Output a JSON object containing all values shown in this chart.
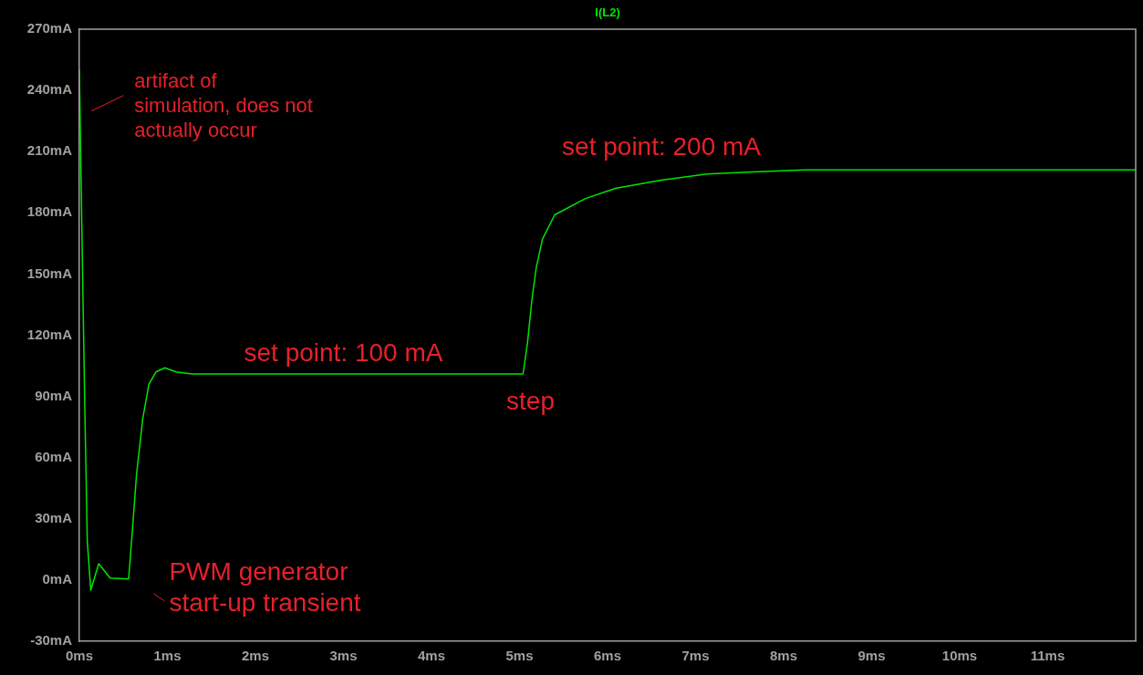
{
  "chart_data": {
    "type": "line",
    "title": "I(L2)",
    "xlim": [
      0,
      12
    ],
    "ylim": [
      -30,
      270
    ],
    "xticks": [
      {
        "value": 0,
        "label": "0ms"
      },
      {
        "value": 1,
        "label": "1ms"
      },
      {
        "value": 2,
        "label": "2ms"
      },
      {
        "value": 3,
        "label": "3ms"
      },
      {
        "value": 4,
        "label": "4ms"
      },
      {
        "value": 5,
        "label": "5ms"
      },
      {
        "value": 6,
        "label": "6ms"
      },
      {
        "value": 7,
        "label": "7ms"
      },
      {
        "value": 8,
        "label": "8ms"
      },
      {
        "value": 9,
        "label": "9ms"
      },
      {
        "value": 10,
        "label": "10ms"
      },
      {
        "value": 11,
        "label": "11ms"
      }
    ],
    "yticks": [
      {
        "value": -30,
        "label": "-30mA"
      },
      {
        "value": 0,
        "label": "0mA"
      },
      {
        "value": 30,
        "label": "30mA"
      },
      {
        "value": 60,
        "label": "60mA"
      },
      {
        "value": 90,
        "label": "90mA"
      },
      {
        "value": 120,
        "label": "120mA"
      },
      {
        "value": 150,
        "label": "150mA"
      },
      {
        "value": 180,
        "label": "180mA"
      },
      {
        "value": 210,
        "label": "210mA"
      },
      {
        "value": 240,
        "label": "240mA"
      },
      {
        "value": 270,
        "label": "270mA"
      }
    ],
    "marker": "none",
    "line_style": "solid",
    "series": [
      {
        "color": "#00e600",
        "x": [
          0,
          0.04,
          0.06,
          0.09,
          0.13,
          0.22,
          0.35,
          0.56,
          0.6,
          0.65,
          0.72,
          0.79,
          0.87,
          0.97,
          1.1,
          1.28,
          5.0,
          5.04,
          5.09,
          5.14,
          5.19,
          5.26,
          5.4,
          5.75,
          6.09,
          6.61,
          7.13,
          7.65,
          8.24,
          12
        ],
        "values": [
          250,
          141,
          89,
          19,
          -5,
          8,
          1,
          0.5,
          23,
          52,
          79,
          96,
          102,
          104,
          102,
          101,
          101,
          101,
          116,
          137,
          153,
          167,
          179,
          187,
          192,
          196,
          199,
          200,
          201,
          201
        ]
      }
    ],
    "annotations": [
      "artifact of simulation, does not actually occur",
      "PWM generator start-up transient",
      {
        "text": "set point: 100 mA",
        "x": 3,
        "y": 101
      },
      {
        "text": "step",
        "x": 5,
        "y": 101
      },
      "set point: 200 mA"
    ]
  }
}
